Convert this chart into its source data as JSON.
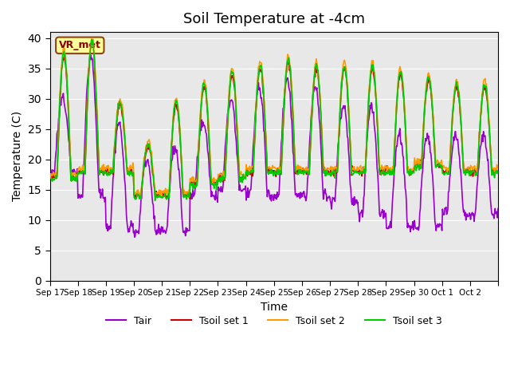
{
  "title": "Soil Temperature at -4cm",
  "xlabel": "Time",
  "ylabel": "Temperature (C)",
  "ylim": [
    0,
    41
  ],
  "yticks": [
    0,
    5,
    10,
    15,
    20,
    25,
    30,
    35,
    40
  ],
  "bg_color": "#e8e8e8",
  "fig_bg_color": "#ffffff",
  "line_colors": {
    "Tair": "#9900cc",
    "Tsoil1": "#cc0000",
    "Tsoil2": "#ff9900",
    "Tsoil3": "#00cc00"
  },
  "line_widths": {
    "Tair": 1.2,
    "Tsoil1": 1.2,
    "Tsoil2": 1.2,
    "Tsoil3": 1.2
  },
  "legend_labels": [
    "Tair",
    "Tsoil set 1",
    "Tsoil set 2",
    "Tsoil set 3"
  ],
  "annotation_text": "VR_met",
  "annotation_box_color": "#ffff99",
  "annotation_box_edge": "#8b4513",
  "x_tick_labels": [
    "Sep 17",
    "Sep 18",
    "Sep 19",
    "Sep 20",
    "Sep 21",
    "Sep 22",
    "Sep 23",
    "Sep 24",
    "Sep 25",
    "Sep 26",
    "Sep 27",
    "Sep 28",
    "Sep 29",
    "Sep 30",
    "Oct 1",
    "Oct 2",
    ""
  ],
  "n_points_per_day": 48,
  "day_peaks_soil": [
    37,
    39,
    29,
    22,
    29,
    32,
    34,
    35,
    36,
    35,
    35,
    35,
    34,
    33,
    32,
    32
  ],
  "day_mins_soil": [
    17,
    18,
    18,
    14,
    14,
    16,
    17,
    18,
    18,
    18,
    18,
    18,
    18,
    19,
    18,
    18
  ],
  "day_mins_air": [
    18,
    14,
    9,
    8,
    8,
    14,
    15,
    14,
    14,
    14,
    13,
    11,
    9,
    9,
    11,
    11
  ],
  "day_peaks_air": [
    30,
    37,
    26,
    20,
    22,
    26,
    30,
    32,
    33,
    32,
    29,
    29,
    24,
    24,
    24,
    24
  ]
}
